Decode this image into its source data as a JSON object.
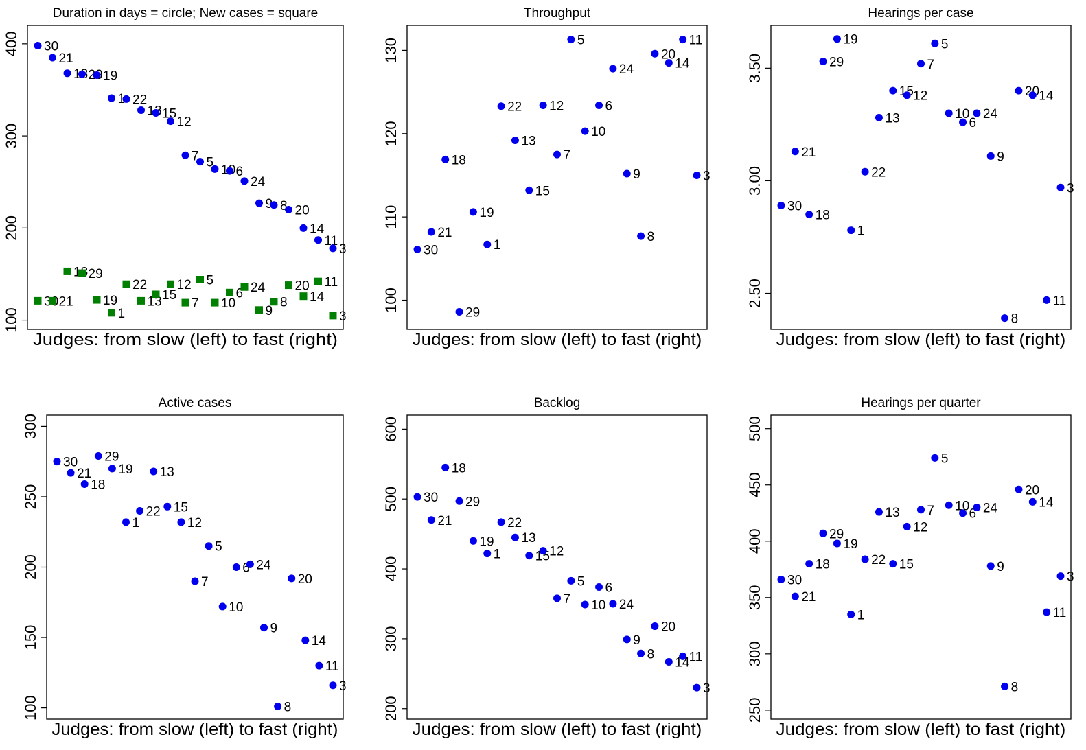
{
  "colors": {
    "circle": "#0000ee",
    "square": "#007f00",
    "axis": "#000000",
    "background": "#ffffff"
  },
  "chart_data": [
    {
      "type": "scatter",
      "title": "Duration in days = circle; New cases = square",
      "xlabel": "Judges: from slow (left) to fast (right)",
      "ylabel": "",
      "ylim": [
        90,
        420
      ],
      "yticks": [
        100,
        200,
        300,
        400
      ],
      "judges": [
        "30",
        "21",
        "18",
        "29",
        "19",
        "1",
        "22",
        "13",
        "15",
        "12",
        "7",
        "5",
        "10",
        "6",
        "24",
        "9",
        "8",
        "20",
        "14",
        "11",
        "3"
      ],
      "series": [
        {
          "marker": "circle",
          "values": [
            398,
            385,
            368,
            367,
            366,
            341,
            340,
            328,
            325,
            316,
            279,
            272,
            264,
            262,
            251,
            227,
            225,
            220,
            200,
            187,
            178
          ]
        },
        {
          "marker": "square",
          "values": [
            121,
            121,
            153,
            151,
            122,
            108,
            139,
            121,
            128,
            139,
            119,
            144,
            119,
            130,
            136,
            111,
            120,
            138,
            126,
            142,
            105
          ]
        }
      ]
    },
    {
      "type": "scatter",
      "title": "Throughput",
      "xlabel": "Judges: from slow (left) to fast (right)",
      "ylabel": "",
      "ylim": [
        96.5,
        133
      ],
      "yticks": [
        100,
        110,
        120,
        130
      ],
      "judges": [
        "30",
        "21",
        "18",
        "29",
        "19",
        "1",
        "22",
        "13",
        "15",
        "12",
        "7",
        "5",
        "10",
        "6",
        "24",
        "9",
        "8",
        "20",
        "14",
        "11",
        "3"
      ],
      "series": [
        {
          "marker": "circle",
          "values": [
            106.1,
            108.2,
            116.9,
            98.6,
            110.6,
            106.7,
            123.3,
            119.2,
            113.2,
            123.4,
            117.5,
            131.3,
            120.3,
            123.4,
            127.8,
            115.2,
            107.7,
            129.6,
            128.5,
            131.3,
            115.0
          ]
        }
      ]
    },
    {
      "type": "scatter",
      "title": "Hearings per case",
      "xlabel": "Judges: from slow (left) to fast (right)",
      "ylabel": "",
      "ylim": [
        2.34,
        3.69
      ],
      "yticks": [
        2.5,
        3.0,
        3.5
      ],
      "ytick_labels": [
        "2.50",
        "3.00",
        "3.50"
      ],
      "judges": [
        "30",
        "21",
        "18",
        "29",
        "19",
        "1",
        "22",
        "13",
        "15",
        "12",
        "7",
        "5",
        "10",
        "6",
        "24",
        "9",
        "8",
        "20",
        "14",
        "11",
        "3"
      ],
      "series": [
        {
          "marker": "circle",
          "values": [
            2.89,
            3.13,
            2.85,
            3.53,
            3.63,
            2.78,
            3.04,
            3.28,
            3.4,
            3.38,
            3.52,
            3.61,
            3.3,
            3.26,
            3.3,
            3.11,
            2.39,
            3.4,
            3.38,
            2.47,
            2.97
          ]
        }
      ]
    },
    {
      "type": "scatter",
      "title": "Active cases",
      "xlabel": "Judges: from slow (left) to fast (right)",
      "ylabel": "",
      "ylim": [
        92,
        308
      ],
      "yticks": [
        100,
        150,
        200,
        250,
        300
      ],
      "judges": [
        "30",
        "21",
        "18",
        "29",
        "19",
        "1",
        "22",
        "13",
        "15",
        "12",
        "7",
        "5",
        "10",
        "6",
        "24",
        "9",
        "8",
        "20",
        "14",
        "11",
        "3"
      ],
      "series": [
        {
          "marker": "circle",
          "values": [
            275,
            267,
            259,
            279,
            270,
            232,
            240,
            268,
            243,
            232,
            190,
            215,
            172,
            200,
            202,
            157,
            101,
            192,
            148,
            130,
            116
          ]
        }
      ]
    },
    {
      "type": "scatter",
      "title": "Backlog",
      "xlabel": "Judges: from slow (left) to fast (right)",
      "ylabel": "",
      "ylim": [
        185,
        620
      ],
      "yticks": [
        200,
        300,
        400,
        500,
        600
      ],
      "judges": [
        "30",
        "21",
        "18",
        "29",
        "19",
        "1",
        "22",
        "13",
        "15",
        "12",
        "7",
        "5",
        "10",
        "6",
        "24",
        "9",
        "8",
        "20",
        "14",
        "11",
        "3"
      ],
      "series": [
        {
          "marker": "circle",
          "values": [
            503,
            470,
            545,
            497,
            440,
            422,
            467,
            445,
            419,
            426,
            358,
            383,
            349,
            374,
            350,
            299,
            279,
            318,
            267,
            275,
            230
          ]
        }
      ]
    },
    {
      "type": "scatter",
      "title": "Hearings per quarter",
      "xlabel": "Judges: from slow (left) to fast (right)",
      "ylabel": "",
      "ylim": [
        242,
        512
      ],
      "yticks": [
        250,
        300,
        350,
        400,
        450,
        500
      ],
      "judges": [
        "30",
        "21",
        "18",
        "29",
        "19",
        "1",
        "22",
        "13",
        "15",
        "12",
        "7",
        "5",
        "10",
        "6",
        "24",
        "9",
        "8",
        "20",
        "14",
        "11",
        "3"
      ],
      "series": [
        {
          "marker": "circle",
          "values": [
            366,
            351,
            380,
            407,
            398,
            335,
            384,
            426,
            380,
            413,
            428,
            474,
            432,
            425,
            430,
            378,
            271,
            446,
            435,
            337,
            369
          ]
        }
      ]
    }
  ]
}
